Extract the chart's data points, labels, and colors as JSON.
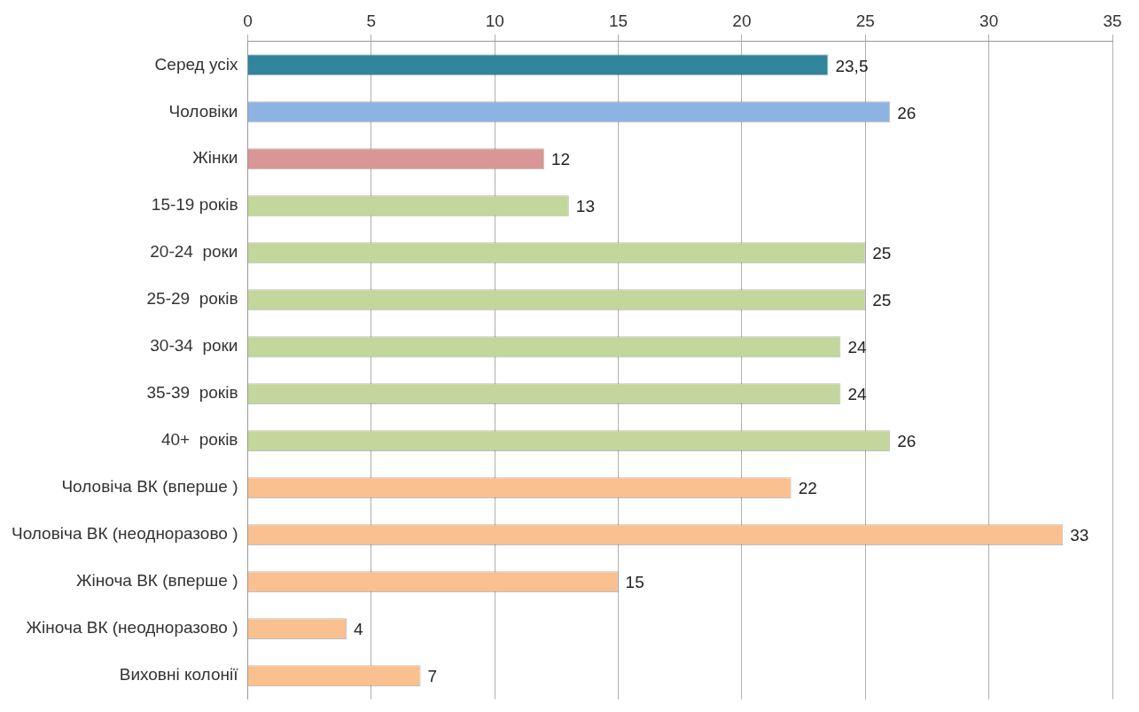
{
  "chart_data": {
    "type": "bar",
    "orientation": "horizontal",
    "categories": [
      "Серед усіх",
      "Чоловіки",
      "Жінки",
      "15-19 років",
      "20-24  роки",
      "25-29  років",
      "30-34  роки",
      "35-39  років",
      "40+  років",
      "Чоловіча ВК (вперше )",
      "Чоловіча ВК (неодноразово )",
      "Жіноча ВК (вперше )",
      "Жіноча ВК (неодноразово )",
      "Виховні колонії"
    ],
    "values": [
      23.5,
      26,
      12,
      13,
      25,
      25,
      24,
      24,
      26,
      22,
      33,
      15,
      4,
      7
    ],
    "value_labels": [
      "23,5",
      "26",
      "12",
      "13",
      "25",
      "25",
      "24",
      "24",
      "26",
      "22",
      "33",
      "15",
      "4",
      "7"
    ],
    "colors": [
      "#31859c",
      "#8db3e2",
      "#d99694",
      "#c3d69b",
      "#c3d69b",
      "#c3d69b",
      "#c3d69b",
      "#c3d69b",
      "#c3d69b",
      "#fac090",
      "#fac090",
      "#fac090",
      "#fac090",
      "#fac090"
    ],
    "xlim": [
      0,
      35
    ],
    "xticks": [
      0,
      5,
      10,
      15,
      20,
      25,
      30,
      35
    ],
    "grid": "x",
    "legend": false
  }
}
